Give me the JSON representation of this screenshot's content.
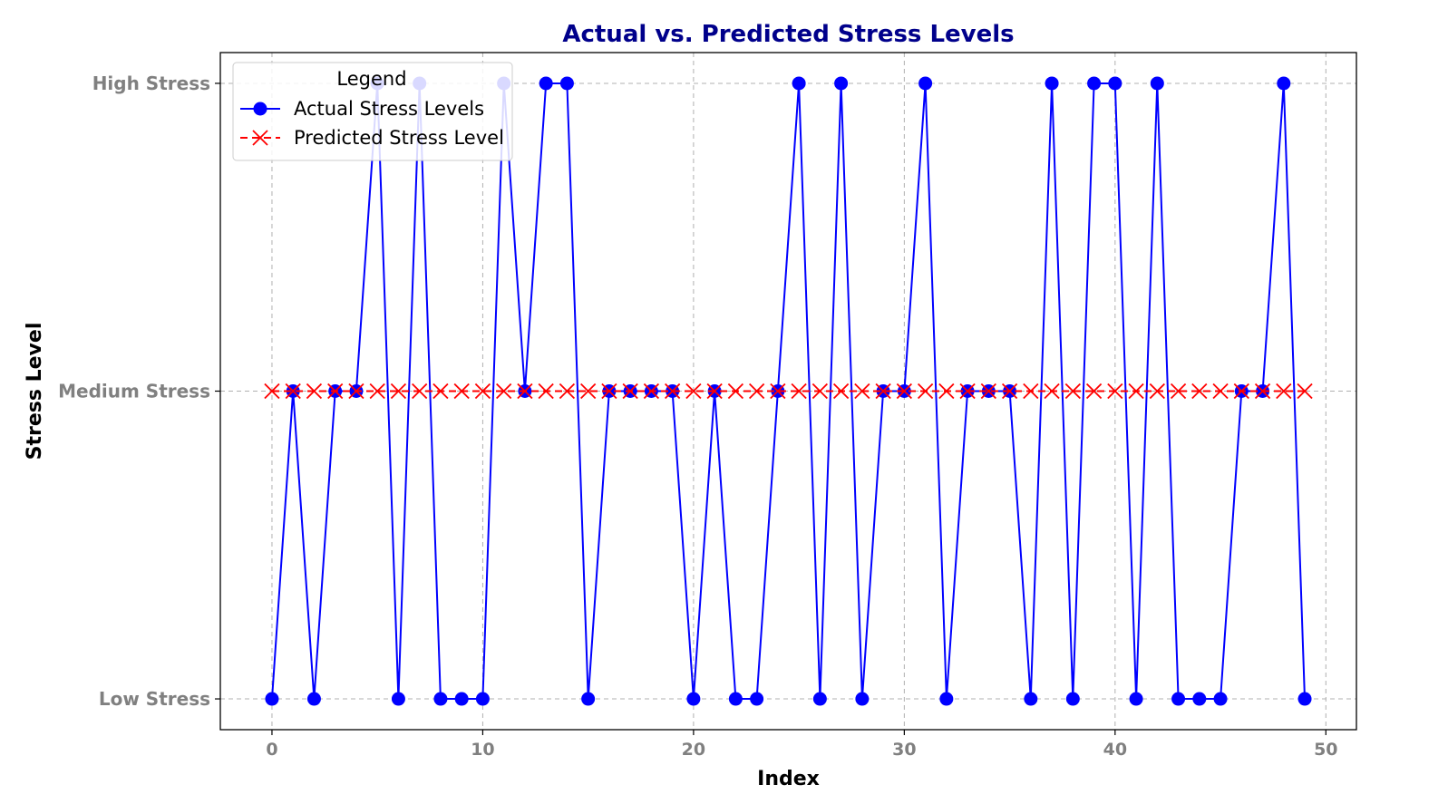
{
  "chart_data": {
    "type": "line",
    "title": "Actual vs. Predicted Stress Levels",
    "xlabel": "Index",
    "ylabel": "Stress Level",
    "xlim": [
      -2.45,
      51.45
    ],
    "ylim": [
      -0.1,
      2.1
    ],
    "xticks": [
      0,
      10,
      20,
      30,
      40,
      50
    ],
    "xtick_labels": [
      "0",
      "10",
      "20",
      "30",
      "40",
      "50"
    ],
    "yticks": [
      0,
      1,
      2
    ],
    "ytick_labels": [
      "Low Stress",
      "Medium Stress",
      "High Stress"
    ],
    "grid": true,
    "legend": {
      "title": "Legend",
      "position": "top-left"
    },
    "x": [
      0,
      1,
      2,
      3,
      4,
      5,
      6,
      7,
      8,
      9,
      10,
      11,
      12,
      13,
      14,
      15,
      16,
      17,
      18,
      19,
      20,
      21,
      22,
      23,
      24,
      25,
      26,
      27,
      28,
      29,
      30,
      31,
      32,
      33,
      34,
      35,
      36,
      37,
      38,
      39,
      40,
      41,
      42,
      43,
      44,
      45,
      46,
      47,
      48,
      49
    ],
    "series": [
      {
        "name": "Actual Stress Levels",
        "color": "#0000ff",
        "marker": "circle",
        "linestyle": "solid",
        "values": [
          0,
          1,
          0,
          1,
          1,
          2,
          0,
          2,
          0,
          0,
          0,
          2,
          1,
          2,
          2,
          0,
          1,
          1,
          1,
          1,
          0,
          1,
          0,
          0,
          1,
          2,
          0,
          2,
          0,
          1,
          1,
          2,
          0,
          1,
          1,
          1,
          0,
          2,
          0,
          2,
          2,
          0,
          2,
          0,
          0,
          0,
          1,
          1,
          2,
          0
        ]
      },
      {
        "name": "Predicted Stress Level",
        "color": "#ff0000",
        "marker": "x",
        "linestyle": "dashed",
        "values": [
          1,
          1,
          1,
          1,
          1,
          1,
          1,
          1,
          1,
          1,
          1,
          1,
          1,
          1,
          1,
          1,
          1,
          1,
          1,
          1,
          1,
          1,
          1,
          1,
          1,
          1,
          1,
          1,
          1,
          1,
          1,
          1,
          1,
          1,
          1,
          1,
          1,
          1,
          1,
          1,
          1,
          1,
          1,
          1,
          1,
          1,
          1,
          1,
          1,
          1
        ]
      }
    ]
  }
}
